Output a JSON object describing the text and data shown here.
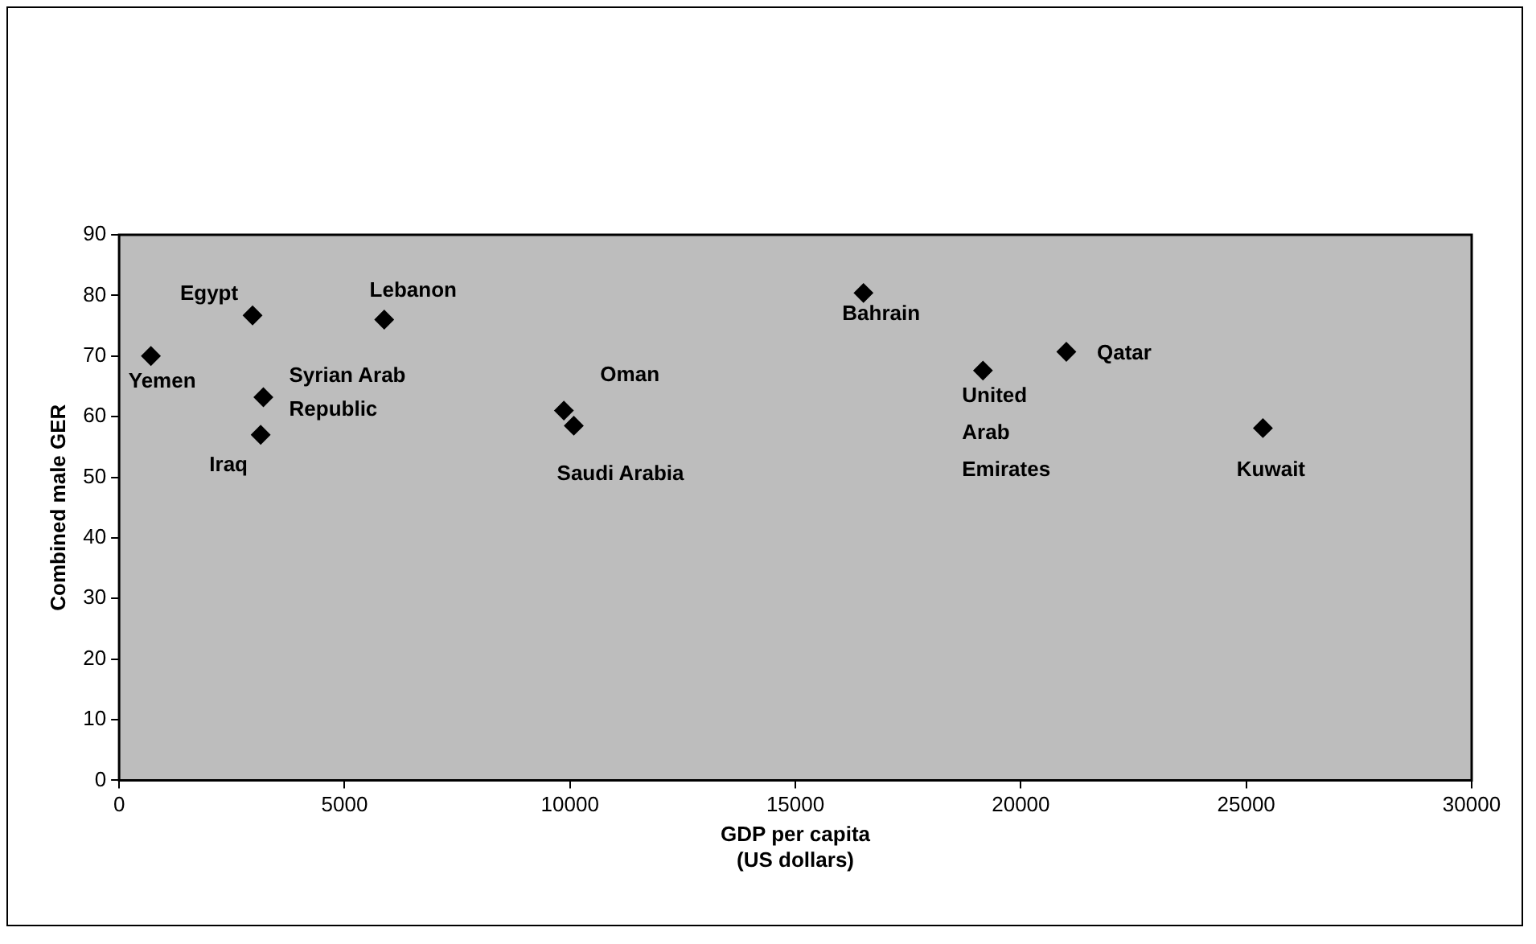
{
  "chart_data": {
    "type": "scatter",
    "xlabel": "GDP per capita\n(US dollars)",
    "ylabel": "Combined male GER",
    "marker": "diamond",
    "series": [
      {
        "color": "#000000",
        "x": [
          705,
          2960,
          5880,
          3200,
          3140,
          9865,
          10085,
          16510,
          19160,
          21010,
          25370
        ],
        "values": [
          70,
          76.7,
          76,
          63.2,
          57,
          61,
          58.5,
          80.4,
          67.6,
          70.7,
          58.1
        ]
      }
    ],
    "xlim": [
      0,
      30000
    ],
    "xticks": [
      0,
      5000,
      10000,
      15000,
      20000,
      25000,
      30000
    ],
    "ylim": [
      0,
      90
    ],
    "yticks": [
      0,
      10,
      20,
      30,
      40,
      50,
      60,
      70,
      80,
      90
    ],
    "annotations": [
      {
        "text": "Yemen",
        "x": 705,
        "y": 70
      },
      {
        "text": "Egypt",
        "x": 2960,
        "y": 76.7
      },
      {
        "text": "Lebanon",
        "x": 5880,
        "y": 76
      },
      {
        "text": "Syrian Arab Republic",
        "x": 3200,
        "y": 63.2
      },
      {
        "text": "Iraq",
        "x": 3140,
        "y": 57
      },
      {
        "text": "Oman",
        "x": 9865,
        "y": 61
      },
      {
        "text": "Saudi Arabia",
        "x": 10085,
        "y": 58.5
      },
      {
        "text": "Bahrain",
        "x": 16510,
        "y": 80.4
      },
      {
        "text": "United Arab Emirates",
        "x": 19160,
        "y": 67.6
      },
      {
        "text": "Qatar",
        "x": 21010,
        "y": 70.7
      },
      {
        "text": "Kuwait",
        "x": 25370,
        "y": 58.1
      }
    ]
  }
}
